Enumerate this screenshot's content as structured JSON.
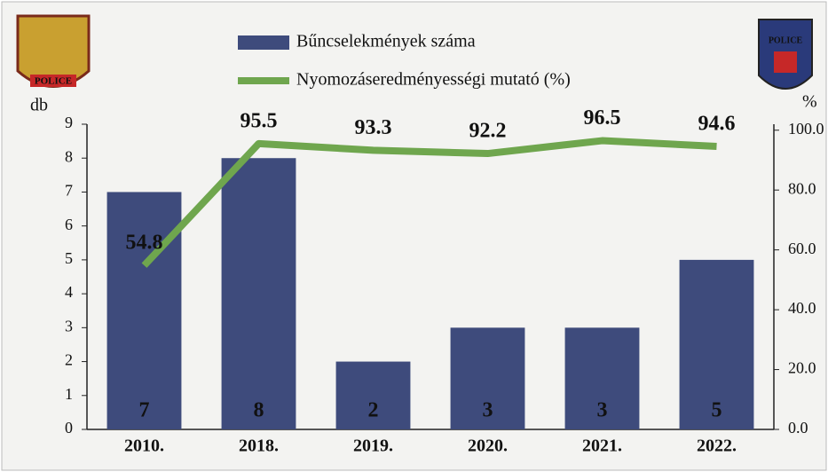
{
  "chart_data": {
    "type": "bar_line",
    "logo_left": "POLICE",
    "logo_right": "POLICE",
    "ylabel": "db",
    "y2label": "%",
    "categories": [
      "2010.",
      "2018.",
      "2019.",
      "2020.",
      "2021.",
      "2022."
    ],
    "series": [
      {
        "name": "Bűncselekmények száma",
        "type": "bar",
        "color": "#3e4b7c",
        "values": [
          7,
          8,
          2,
          3,
          3,
          5
        ]
      },
      {
        "name": "Nyomozáseredményességi mutató (%)",
        "type": "line",
        "axis": "y2",
        "color": "#6fa64e",
        "label_color": "#b4541c",
        "values": [
          54.8,
          95.5,
          93.3,
          92.2,
          96.5,
          94.6
        ]
      }
    ],
    "ylim": [
      0,
      9
    ],
    "yticks": [
      0,
      1,
      2,
      3,
      4,
      5,
      6,
      7,
      8,
      9
    ],
    "y2lim": [
      0,
      102
    ],
    "y2ticks": [
      {
        "value": 0,
        "label": "0.0"
      },
      {
        "value": 20,
        "label": "20.0"
      },
      {
        "value": 40,
        "label": "40.0"
      },
      {
        "value": 60,
        "label": "60.0"
      },
      {
        "value": 80,
        "label": "80.0"
      },
      {
        "value": 100,
        "label": "100.0"
      }
    ]
  }
}
